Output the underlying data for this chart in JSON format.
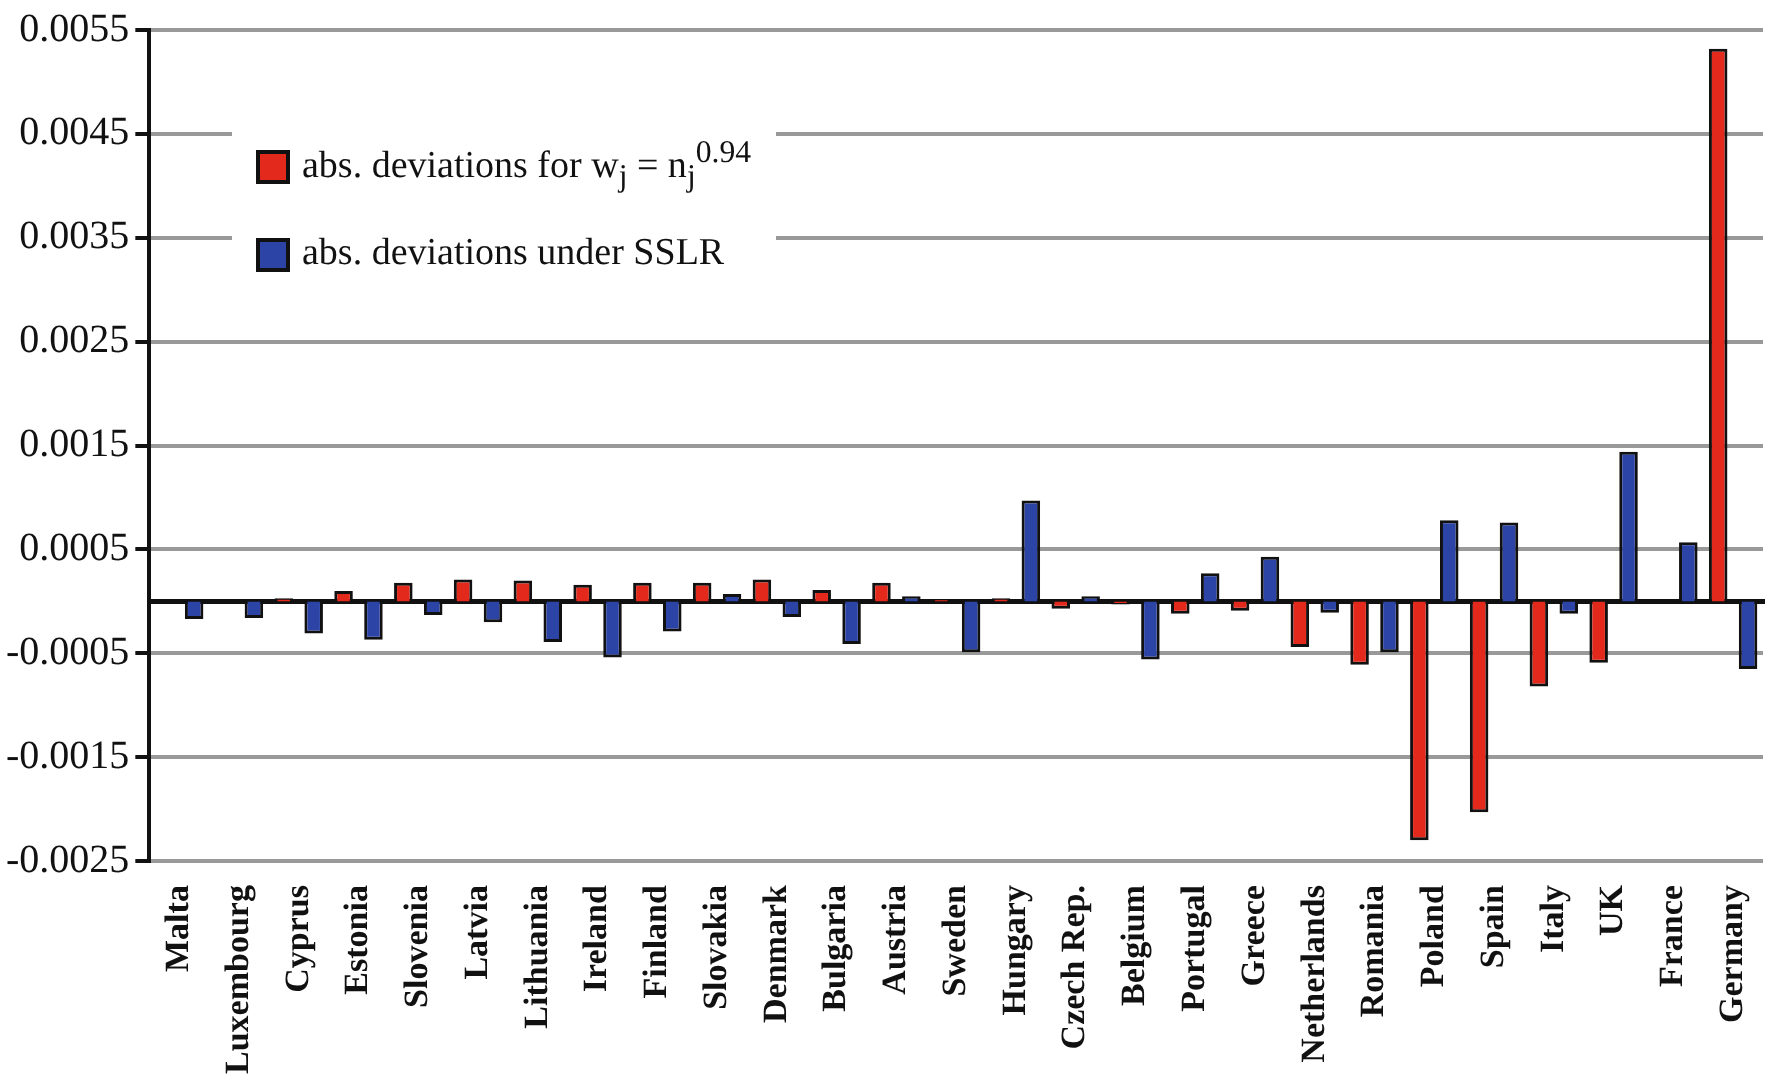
{
  "chart_data": {
    "type": "bar",
    "categories": [
      "Malta",
      "Luxembourg",
      "Cyprus",
      "Estonia",
      "Slovenia",
      "Latvia",
      "Lithuania",
      "Ireland",
      "Finland",
      "Slovakia",
      "Denmark",
      "Bulgaria",
      "Austria",
      "Sweden",
      "Hungary",
      "Czech Rep.",
      "Belgium",
      "Portugal",
      "Greece",
      "Netherlands",
      "Romania",
      "Poland",
      "Spain",
      "Italy",
      "UK",
      "France",
      "Germany"
    ],
    "series": [
      {
        "name": "abs. deviations for  w$_{j}$ = n$_{j}$$^{0.94}$",
        "color": "#e3281c",
        "values": [
          null,
          null,
          3e-05,
          0.0001,
          0.00018,
          0.00021,
          0.0002,
          0.00016,
          0.00018,
          0.00018,
          0.00021,
          0.00011,
          0.00018,
          2e-05,
          3e-05,
          -7e-05,
          -3e-05,
          -0.00012,
          -9e-05,
          -0.00044,
          -0.00061,
          -0.0023,
          -0.00203,
          -0.00082,
          -0.00059,
          null,
          0.00532
        ]
      },
      {
        "name": "abs. deviations under SSLR",
        "color": "#2c44a6",
        "values": [
          -0.00017,
          -0.00016,
          -0.00031,
          -0.00037,
          -0.00013,
          -0.0002,
          -0.00039,
          -0.00054,
          -0.00029,
          7e-05,
          -0.00015,
          -0.00041,
          5e-05,
          -0.00049,
          0.00097,
          5e-05,
          -0.00056,
          0.00027,
          0.00043,
          -0.00011,
          -0.00049,
          0.00078,
          0.00076,
          -0.00012,
          0.00144,
          0.00057,
          -0.00065
        ]
      }
    ],
    "ylim": [
      -0.0025,
      0.0055
    ],
    "yticks": [
      -0.0025,
      -0.0015,
      -0.0005,
      0.0005,
      0.0015,
      0.0025,
      0.0035,
      0.0045,
      0.0055
    ],
    "grid": "y",
    "legend": "top left"
  }
}
